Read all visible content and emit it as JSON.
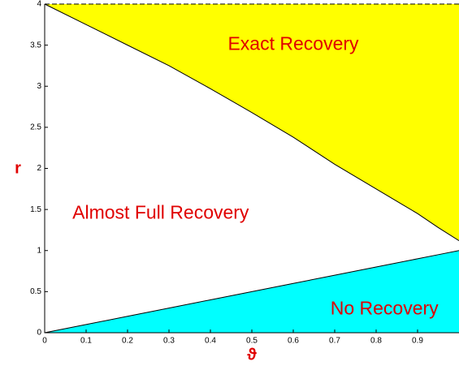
{
  "chart_data": {
    "type": "area",
    "x": [
      0,
      0.1,
      0.2,
      0.3,
      0.4,
      0.5,
      0.6,
      0.7,
      0.8,
      0.9,
      0.95,
      1.0
    ],
    "series": [
      {
        "color": "#ffff00",
        "fill_to": "top",
        "values": [
          4,
          3.75,
          3.5,
          3.25,
          2.97,
          2.68,
          2.38,
          2.05,
          1.75,
          1.45,
          1.28,
          1.12
        ]
      },
      {
        "color": "#00ffff",
        "fill_to": "bottom",
        "values": [
          0,
          0.1,
          0.2,
          0.3,
          0.4,
          0.5,
          0.6,
          0.7,
          0.8,
          0.9,
          0.95,
          1.0
        ]
      }
    ],
    "xlabel": "ϑ",
    "ylabel": "r",
    "xlim": [
      0,
      1
    ],
    "ylim": [
      0,
      4
    ],
    "xticks": [
      0,
      0.1,
      0.2,
      0.3,
      0.4,
      0.5,
      0.6,
      0.7,
      0.8,
      0.9
    ],
    "yticks": [
      0,
      0.5,
      1,
      1.5,
      2,
      2.5,
      3,
      3.5,
      4
    ],
    "annotations": [
      {
        "text": "Exact Recovery",
        "x": 0.6,
        "y": 3.5
      },
      {
        "text": "Almost Full Recovery",
        "x": 0.28,
        "y": 1.45
      },
      {
        "text": "No Recovery",
        "x": 0.82,
        "y": 0.28
      }
    ]
  }
}
